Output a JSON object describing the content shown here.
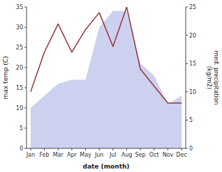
{
  "chart_data": {
    "type": "area",
    "categories": [
      "Jan",
      "Feb",
      "Mar",
      "Apr",
      "May",
      "Jun",
      "Jul",
      "Aug",
      "Sep",
      "Oct",
      "Nov",
      "Dec"
    ],
    "series": [
      {
        "type": "area",
        "color": "#c8ccee",
        "values": [
          10,
          13,
          16,
          17,
          17,
          30,
          34,
          34,
          21,
          18,
          11,
          13
        ]
      },
      {
        "type": "line",
        "color": "#993333",
        "axis": "y2",
        "values": [
          10,
          17,
          22,
          17,
          21,
          24,
          18,
          25,
          14,
          11,
          8,
          8
        ]
      }
    ],
    "xlabel": "date (month)",
    "ylabel": "max temp (C)",
    "y2label": "med. precipitation\n(kg/m2)",
    "ylim": [
      0,
      35
    ],
    "yticks": [
      0,
      5,
      10,
      15,
      20,
      25,
      30,
      35
    ],
    "y2lim": [
      0,
      25
    ],
    "y2ticks": [
      0,
      5,
      10,
      15,
      20,
      25
    ],
    "grid": false
  }
}
